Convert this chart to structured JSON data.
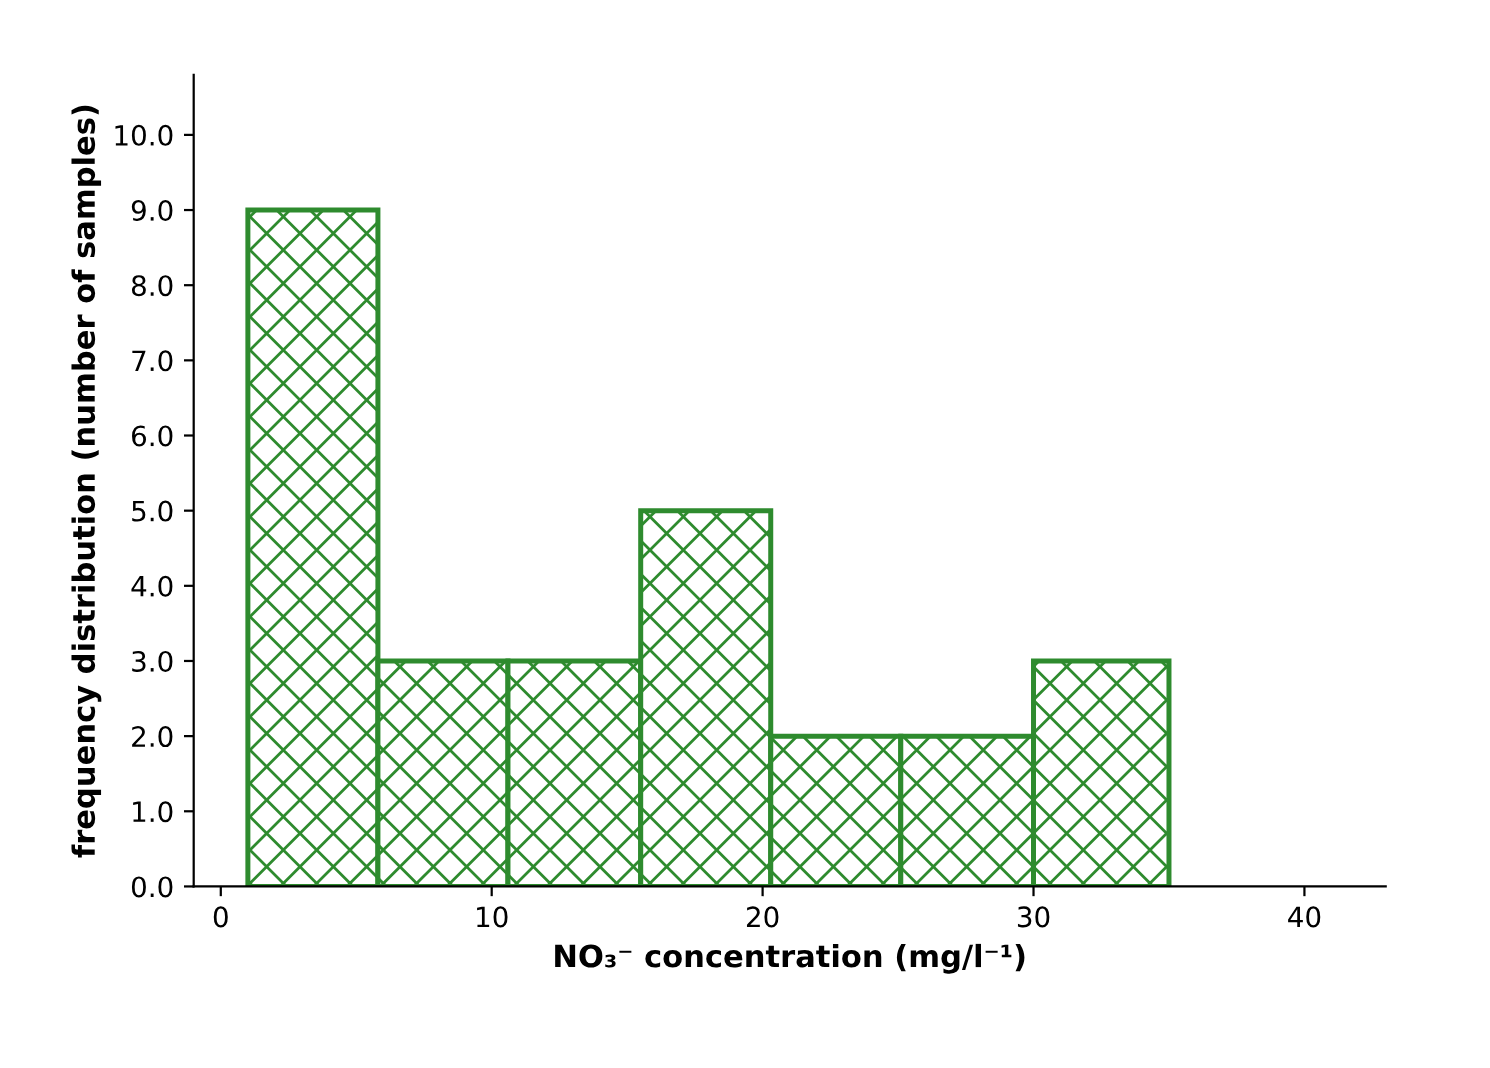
{
  "chart_data": {
    "type": "histogram",
    "xlabel": "NO₃⁻ concentration (mg/l⁻¹)",
    "ylabel": "frequency distribution (number of samples)",
    "bins": [
      1,
      5.8,
      10.6,
      15.5,
      20.3,
      25.1,
      30,
      35
    ],
    "values": [
      9,
      3,
      3,
      5,
      2,
      2,
      3
    ],
    "color": "#2e8b2e",
    "xlim": [
      -1,
      43
    ],
    "ylim": [
      0,
      10.8
    ],
    "xticks": [
      0,
      10,
      20,
      30,
      40
    ],
    "yticks": [
      {
        "value": 0,
        "label": "0.0"
      },
      {
        "value": 1,
        "label": "1.0"
      },
      {
        "value": 2,
        "label": "2.0"
      },
      {
        "value": 3,
        "label": "3.0"
      },
      {
        "value": 4,
        "label": "4.0"
      },
      {
        "value": 5,
        "label": "5.0"
      },
      {
        "value": 6,
        "label": "6.0"
      },
      {
        "value": 7,
        "label": "7.0"
      },
      {
        "value": 8,
        "label": "8.0"
      },
      {
        "value": 9,
        "label": "9.0"
      },
      {
        "value": 10,
        "label": "10.0"
      }
    ],
    "grid": false
  }
}
